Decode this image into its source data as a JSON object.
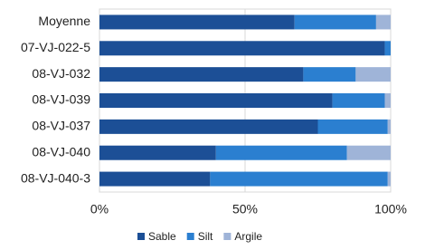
{
  "chart_data": {
    "type": "bar",
    "orientation": "horizontal",
    "stacked": true,
    "categories": [
      "Moyenne",
      "07-VJ-022-5",
      "08-VJ-032",
      "08-VJ-039",
      "08-VJ-037",
      "08-VJ-040",
      "08-VJ-040-3"
    ],
    "series": [
      {
        "name": "Sable",
        "color": "#1c4f96",
        "values": [
          67,
          98,
          70,
          80,
          75,
          40,
          38
        ]
      },
      {
        "name": "Silt",
        "color": "#2b7fd0",
        "values": [
          28,
          2,
          18,
          18,
          24,
          45,
          61
        ]
      },
      {
        "name": "Argile",
        "color": "#9fb4d8",
        "values": [
          5,
          0,
          12,
          2,
          1,
          15,
          1
        ]
      }
    ],
    "xlim": [
      0,
      100
    ],
    "xticks": [
      {
        "value": 0,
        "label": "0%"
      },
      {
        "value": 50,
        "label": "50%"
      },
      {
        "value": 100,
        "label": "100%"
      }
    ],
    "grid": true,
    "legend": "bottom"
  }
}
